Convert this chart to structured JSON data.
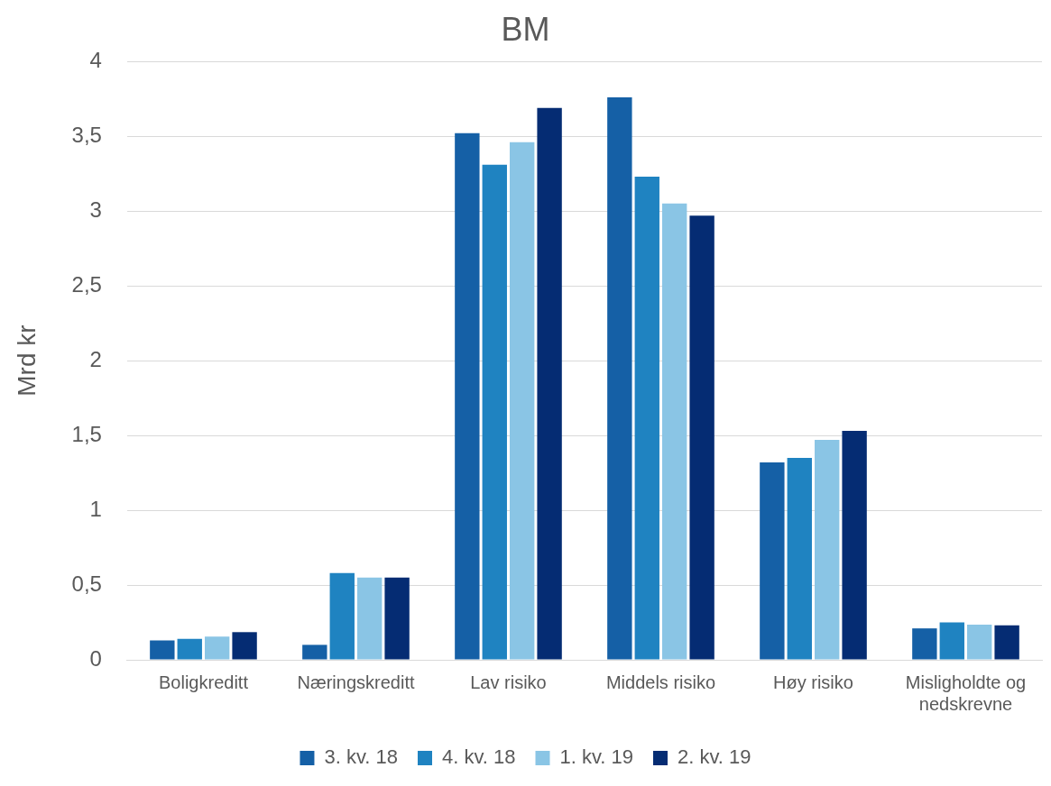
{
  "chart_data": {
    "type": "bar",
    "title": "BM",
    "ylabel": "Mrd kr",
    "categories": [
      "Boligkreditt",
      "Næringskreditt",
      "Lav risiko",
      "Middels risiko",
      "Høy risiko",
      "Misligholdte og nedskrevne"
    ],
    "series": [
      {
        "name": "3. kv. 18",
        "color": "#1560a6",
        "values": [
          0.13,
          0.1,
          3.52,
          3.76,
          1.32,
          0.21
        ]
      },
      {
        "name": "4. kv. 18",
        "color": "#1f83c1",
        "values": [
          0.14,
          0.58,
          3.31,
          3.23,
          1.35,
          0.25
        ]
      },
      {
        "name": "1. kv. 19",
        "color": "#8ac5e5",
        "values": [
          0.155,
          0.55,
          3.46,
          3.05,
          1.47,
          0.235
        ]
      },
      {
        "name": "2. kv. 19",
        "color": "#052c73",
        "values": [
          0.185,
          0.55,
          3.69,
          2.97,
          1.53,
          0.23
        ]
      }
    ],
    "ylim": [
      0,
      4
    ],
    "yticks": [
      0,
      {
        "value": 0.5,
        "label": "0,5"
      },
      1,
      {
        "value": 1.5,
        "label": "1,5"
      },
      2,
      {
        "value": 2.5,
        "label": "2,5"
      },
      3,
      {
        "value": 3.5,
        "label": "3,5"
      },
      4
    ],
    "grid": "y",
    "legend": "bottom"
  }
}
